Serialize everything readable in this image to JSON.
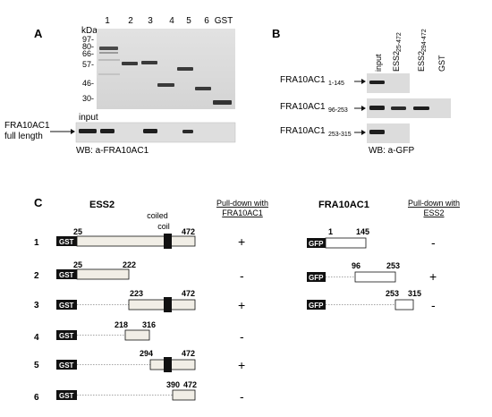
{
  "panelA": {
    "letter": "A",
    "kda_label": "kDa",
    "markers": [
      "97-",
      "80-",
      "66-",
      "57-",
      "46-",
      "30-"
    ],
    "lanes": [
      "1",
      "2",
      "3",
      "4",
      "5",
      "6",
      "GST"
    ],
    "input_label": "input",
    "fra_label_line1": "FRA10AC1",
    "fra_label_line2": "full length",
    "wb_label": "WB: a-FRA10AC1"
  },
  "panelB": {
    "letter": "B",
    "col_input": "input",
    "col_ess2_a": "ESS2",
    "col_ess2_a_sub": "25-472",
    "col_ess2_b": "ESS2",
    "col_ess2_b_sub": "294-472",
    "col_gst": "GST",
    "rows": [
      {
        "name": "FRA10AC1",
        "sub": "1-145"
      },
      {
        "name": "FRA10AC1",
        "sub": "96-253"
      },
      {
        "name": "FRA10AC1",
        "sub": "253-315"
      }
    ],
    "wb_label": "WB: a-GFP"
  },
  "panelC": {
    "letter": "C",
    "ess2_title": "ESS2",
    "coiled_coil_line1": "coiled",
    "coiled_coil_line2": "coil",
    "pulldown_left_line1": "Pull-down with",
    "pulldown_left_line2": "FRA10AC1",
    "fra_title": "FRA10AC1",
    "pulldown_right_line1": "Pull-down with",
    "pulldown_right_line2": "ESS2",
    "tag_gst": "GST",
    "tag_gfp": "GFP",
    "ess2_constructs": [
      {
        "num": "1",
        "start": "25",
        "end": "472",
        "result": "+"
      },
      {
        "num": "2",
        "start": "25",
        "end": "222",
        "result": "-"
      },
      {
        "num": "3",
        "start": "223",
        "end": "472",
        "result": "+"
      },
      {
        "num": "4",
        "start": "218",
        "end": "316",
        "result": "-"
      },
      {
        "num": "5",
        "start": "294",
        "end": "472",
        "result": "+"
      },
      {
        "num": "6",
        "start": "390",
        "end": "472",
        "result": "-"
      }
    ],
    "fra_constructs": [
      {
        "start": "1",
        "end": "145",
        "result": "-"
      },
      {
        "start": "96",
        "end": "253",
        "result": "+"
      },
      {
        "start": "253",
        "end": "315",
        "result": "-"
      }
    ]
  }
}
